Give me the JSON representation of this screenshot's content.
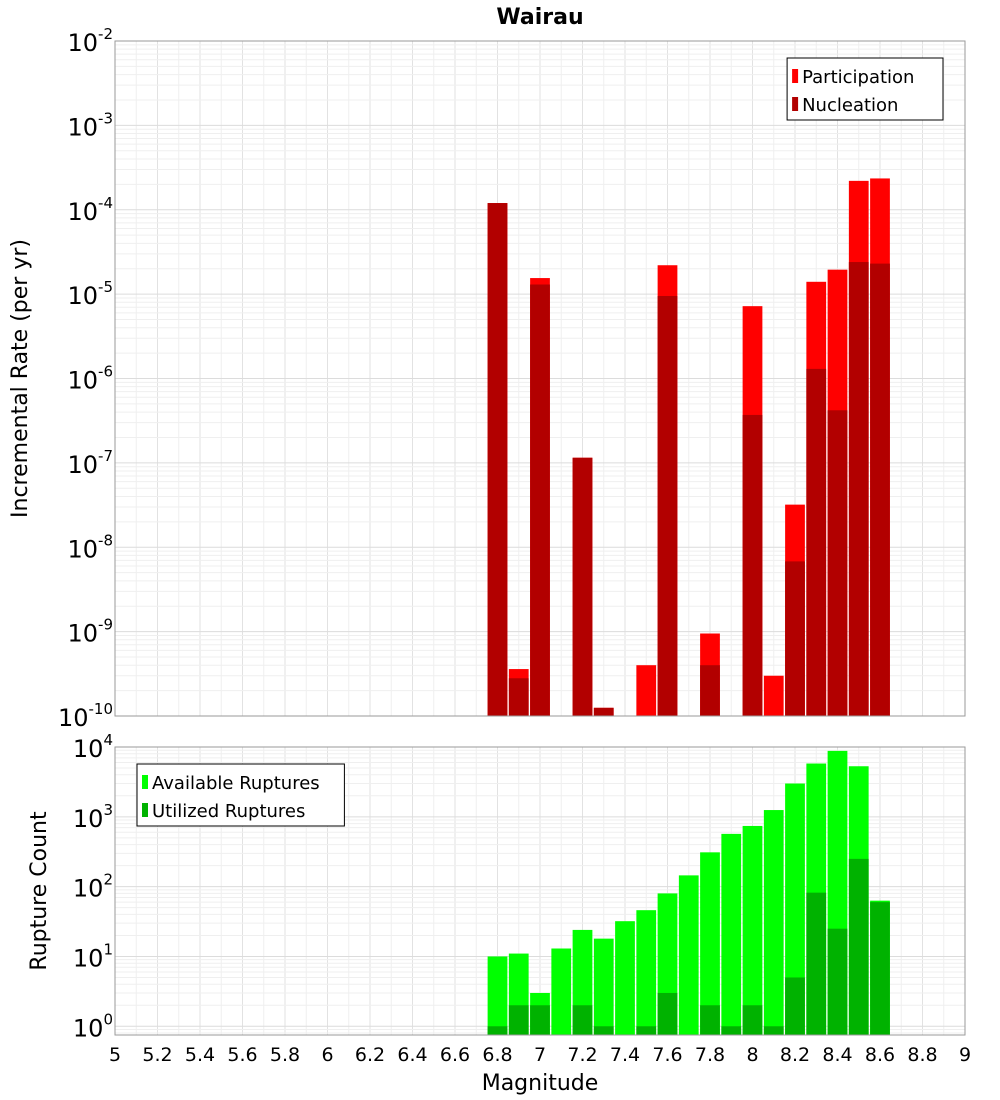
{
  "chart_data": [
    {
      "type": "bar",
      "title": "Wairau",
      "xlabel": "",
      "ylabel": "Incremental Rate (per yr)",
      "yscale": "log",
      "ylim": [
        1e-10,
        0.01
      ],
      "xlim": [
        5,
        9
      ],
      "y_tick_exponents": [
        "-10",
        "-9",
        "-8",
        "-7",
        "-6",
        "-5",
        "-4",
        "-3",
        "-2"
      ],
      "grid": true,
      "legend_position": "top-right",
      "x": [
        6.8,
        6.9,
        7.0,
        7.1,
        7.2,
        7.3,
        7.4,
        7.5,
        7.6,
        7.7,
        7.8,
        7.9,
        8.0,
        8.1,
        8.2,
        8.3,
        8.4,
        8.5,
        8.6,
        8.7
      ],
      "series": [
        {
          "name": "Participation",
          "color": "#ff0000",
          "values": [
            0.00012,
            3.6e-10,
            1.55e-05,
            0,
            1.15e-07,
            1.25e-10,
            0,
            4e-10,
            2.2e-05,
            0,
            9.5e-10,
            0,
            7.2e-06,
            3e-10,
            3.2e-08,
            1.4e-05,
            1.95e-05,
            0.00022,
            0.000235,
            0
          ]
        },
        {
          "name": "Nucleation",
          "color": "#b20000",
          "values": [
            0.00012,
            2.8e-10,
            1.3e-05,
            0,
            1.15e-07,
            1.25e-10,
            0,
            0,
            9.5e-06,
            0,
            4e-10,
            0,
            3.7e-07,
            0,
            6.8e-09,
            1.3e-06,
            4.2e-07,
            2.4e-05,
            2.3e-05,
            0
          ]
        }
      ]
    },
    {
      "type": "bar",
      "title": "",
      "xlabel": "Magnitude",
      "ylabel": "Rupture Count",
      "yscale": "log",
      "ylim": [
        0.75,
        10000
      ],
      "xlim": [
        5,
        9
      ],
      "y_tick_exponents": [
        "0",
        "1",
        "2",
        "3",
        "4"
      ],
      "x_tick_labels": [
        "5",
        "5.2",
        "5.4",
        "5.6",
        "5.8",
        "6",
        "6.2",
        "6.4",
        "6.6",
        "6.8",
        "7",
        "7.2",
        "7.4",
        "7.6",
        "7.8",
        "8",
        "8.2",
        "8.4",
        "8.6",
        "8.8",
        "9"
      ],
      "grid": true,
      "legend_position": "top-left",
      "x": [
        6.8,
        6.9,
        7.0,
        7.1,
        7.2,
        7.3,
        7.4,
        7.5,
        7.6,
        7.7,
        7.8,
        7.9,
        8.0,
        8.1,
        8.2,
        8.3,
        8.4,
        8.5,
        8.6,
        8.7
      ],
      "series": [
        {
          "name": "Available Ruptures",
          "color": "#00ff00",
          "values": [
            10,
            11,
            3,
            13,
            24,
            18,
            32,
            46,
            80,
            145,
            310,
            570,
            740,
            1250,
            3000,
            5800,
            8800,
            5300,
            63,
            0
          ]
        },
        {
          "name": "Utilized Ruptures",
          "color": "#00b200",
          "values": [
            1,
            2,
            2,
            0,
            2,
            1,
            0,
            1,
            3,
            0,
            2,
            1,
            2,
            1,
            5,
            82,
            25,
            250,
            60,
            0
          ]
        }
      ]
    }
  ]
}
